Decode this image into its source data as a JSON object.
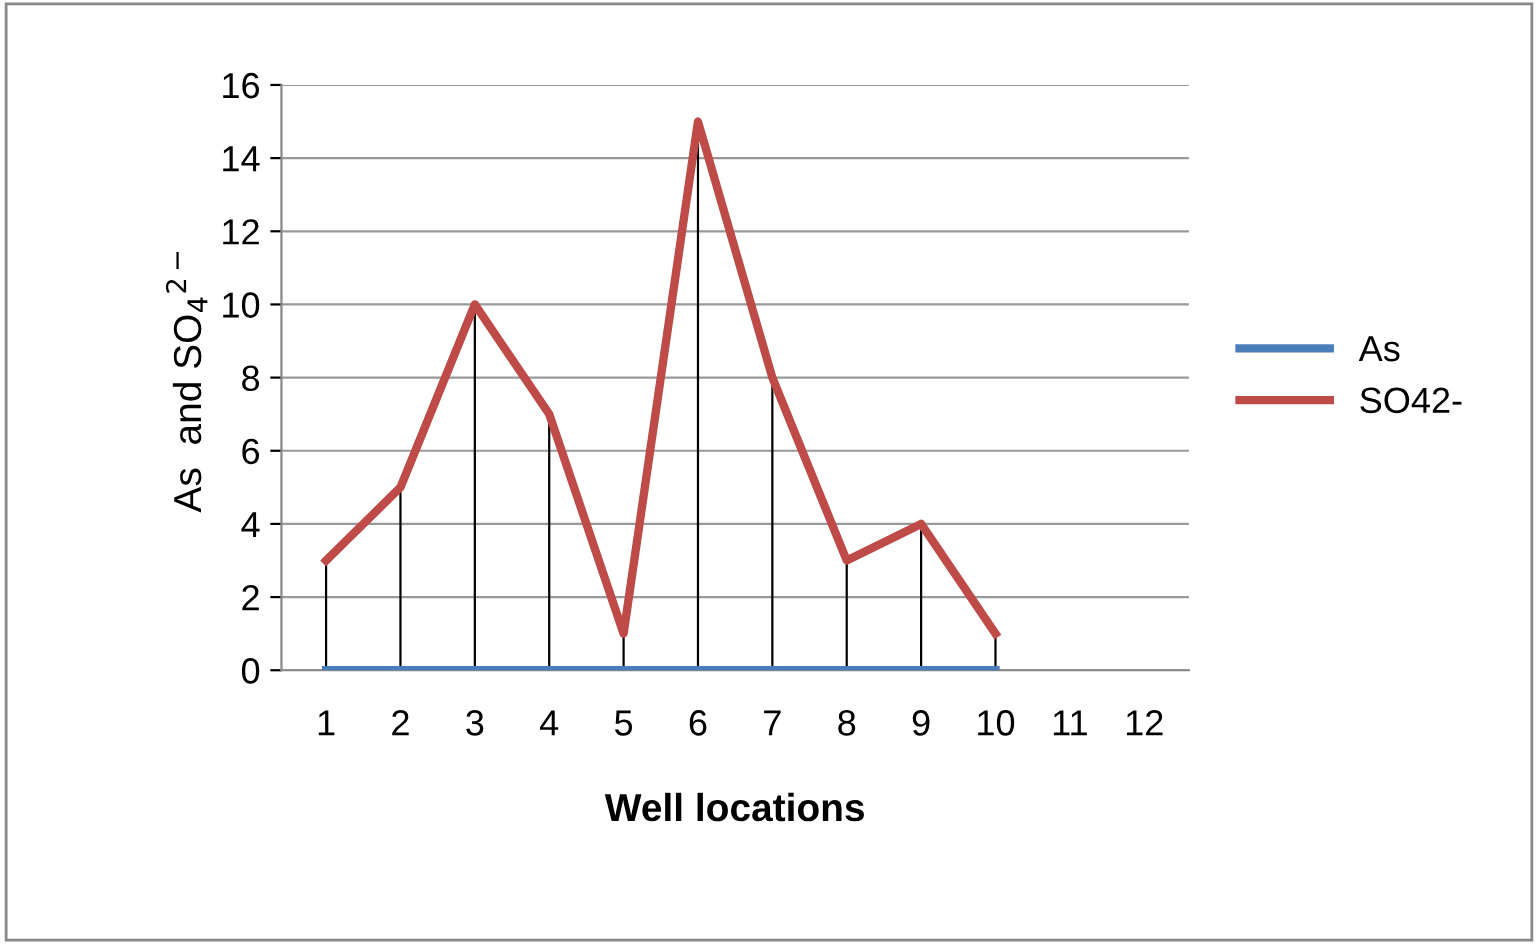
{
  "chart_data": {
    "type": "line",
    "xlabel": "Well locations",
    "ylabel": "As  and SO$_{4}$$^{2−}$",
    "categories": [
      "1",
      "2",
      "3",
      "4",
      "5",
      "6",
      "7",
      "8",
      "9",
      "10",
      "11",
      "12"
    ],
    "series": [
      {
        "name": "As",
        "color": "#4a7ebb",
        "values": [
          0,
          0,
          0,
          0,
          0,
          0,
          0,
          0,
          0,
          0,
          null,
          null
        ]
      },
      {
        "name": "SO42-",
        "color": "#be4b48",
        "values": [
          3,
          5,
          10,
          7,
          1,
          15,
          8,
          3,
          4,
          1,
          null,
          null
        ],
        "errors": [
          [
            0,
            3
          ],
          [
            0,
            5
          ],
          [
            0,
            10
          ],
          [
            0,
            7
          ],
          [
            0,
            1
          ],
          [
            0,
            15
          ],
          [
            0,
            8
          ],
          [
            0,
            3
          ],
          [
            0,
            4
          ],
          [
            0,
            1
          ],
          null,
          null
        ]
      }
    ],
    "ylim": [
      0,
      16
    ],
    "yticks": [
      0,
      2,
      4,
      6,
      8,
      10,
      12,
      14,
      16
    ],
    "grid": "y",
    "legend": "right",
    "marker": "none",
    "line_style": "solid"
  }
}
